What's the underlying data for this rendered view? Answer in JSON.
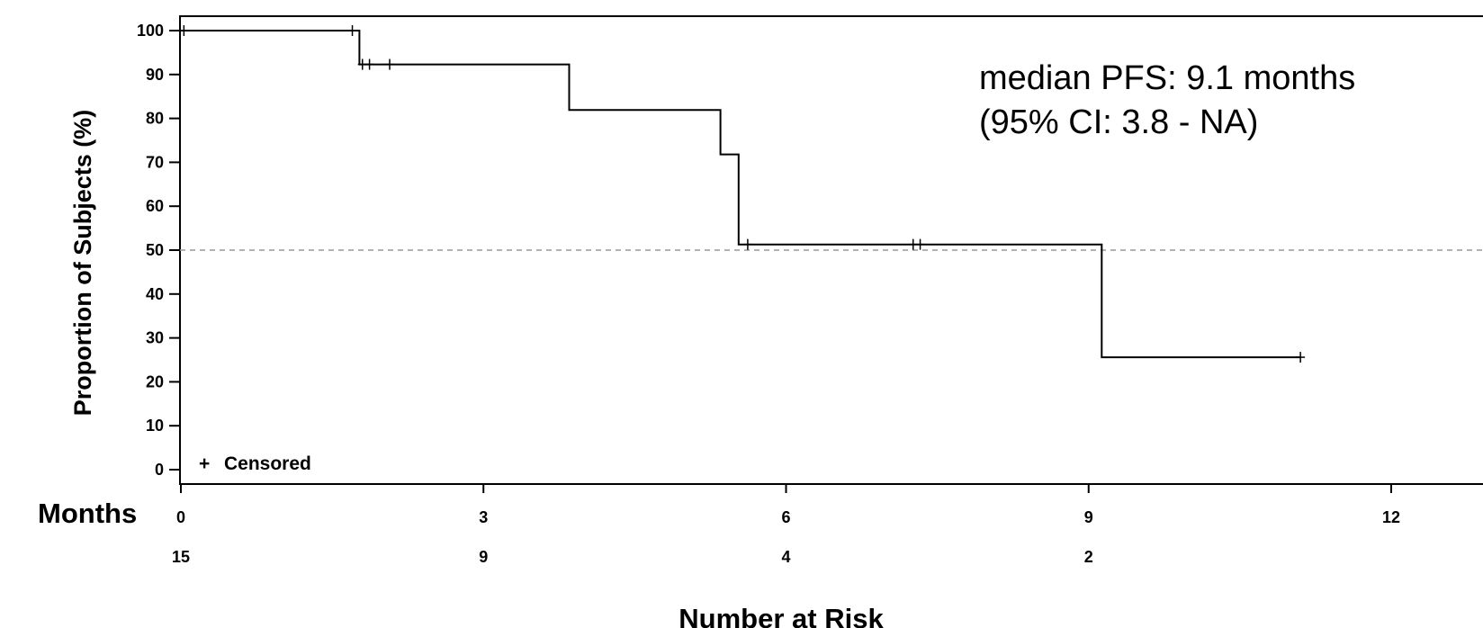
{
  "chart_data": {
    "type": "line",
    "title": "",
    "ylabel": "Proportion of Subjects (%)",
    "xlabel": "Months",
    "xlim": [
      0,
      12
    ],
    "ylim": [
      0,
      100
    ],
    "x_ticks": [
      0,
      3,
      6,
      9,
      12
    ],
    "y_ticks": [
      0,
      10,
      20,
      30,
      40,
      50,
      60,
      70,
      80,
      90,
      100
    ],
    "grid": false,
    "reference_line": {
      "y": 50,
      "style": "dashed"
    },
    "series": [
      {
        "step_points": [
          {
            "x": 0,
            "y": 100
          },
          {
            "x": 1.77,
            "y": 100
          },
          {
            "x": 1.77,
            "y": 92.3
          },
          {
            "x": 3.85,
            "y": 92.3
          },
          {
            "x": 3.85,
            "y": 81.9
          },
          {
            "x": 5.35,
            "y": 81.9
          },
          {
            "x": 5.35,
            "y": 71.8
          },
          {
            "x": 5.53,
            "y": 71.8
          },
          {
            "x": 5.53,
            "y": 51.3
          },
          {
            "x": 9.13,
            "y": 51.3
          },
          {
            "x": 9.13,
            "y": 25.6
          },
          {
            "x": 11.1,
            "y": 25.6
          }
        ],
        "censored": [
          {
            "x": 0.03,
            "y": 100
          },
          {
            "x": 1.7,
            "y": 100
          },
          {
            "x": 1.8,
            "y": 92.3
          },
          {
            "x": 1.87,
            "y": 92.3
          },
          {
            "x": 2.07,
            "y": 92.3
          },
          {
            "x": 5.62,
            "y": 51.3
          },
          {
            "x": 7.26,
            "y": 51.3
          },
          {
            "x": 7.33,
            "y": 51.3
          },
          {
            "x": 11.1,
            "y": 25.6
          }
        ]
      }
    ],
    "legend": {
      "symbol": "+",
      "label": "Censored",
      "position": "bottom-left"
    },
    "annotation_lines": [
      "median PFS: 9.1 months",
      "(95% CI: 3.8 - NA)"
    ],
    "risk_table": {
      "title": "Number at Risk",
      "x": [
        0,
        3,
        6,
        9
      ],
      "values": [
        15,
        9,
        4,
        2
      ]
    }
  },
  "colors": {
    "line": "#000000",
    "reference": "#999999",
    "background": "#ffffff"
  }
}
